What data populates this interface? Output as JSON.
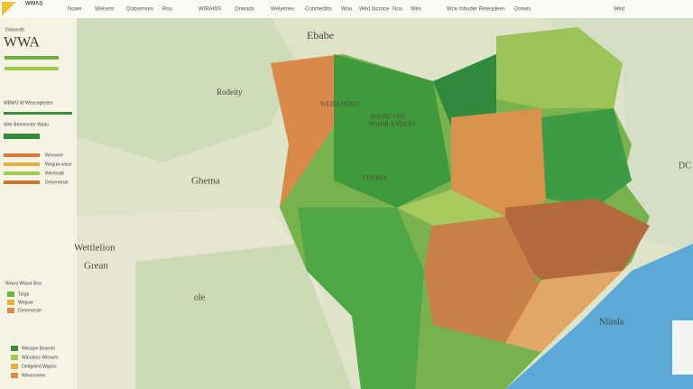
{
  "header": {
    "brand": "WWAS",
    "nav": [
      "Nowe",
      "Welsem",
      "Dobsenves",
      "Rou",
      "WIRAWS",
      "Onwads",
      "Welyenes",
      "Conmeditis",
      "Wou",
      "Wed lacroce",
      "Nou",
      "Wes",
      "Wce Inbuder Reteadees",
      "Drewis",
      "Wed"
    ]
  },
  "panel": {
    "subtitle": "Dobsnsth",
    "title": "WWA",
    "heading": "WBWO W Weucegledes",
    "subheading": "Wek Bemennter Wado",
    "legend": [
      "Wrowore",
      "Woguw wase",
      "Wenbode",
      "Denenreste"
    ],
    "lower_heading": "Wwea Wlaod Bea",
    "lower_legend": [
      "Tsrgb",
      "Woguw",
      "Denenreste"
    ]
  },
  "map": {
    "labels": [
      "Ebabe",
      "Rodeity",
      "Ghema",
      "Wettlelion",
      "Grean",
      "ole",
      "WEIBENENIC",
      "BNERE VEIS",
      "WAIDR ANDERS",
      "CHERER",
      "Nlinda",
      "DC"
    ]
  },
  "footer": {
    "legend": [
      "Wesqoe Bearetn",
      "Wanabos Wenues",
      "Oedgeled Wapos",
      "Wewoorees"
    ]
  }
}
